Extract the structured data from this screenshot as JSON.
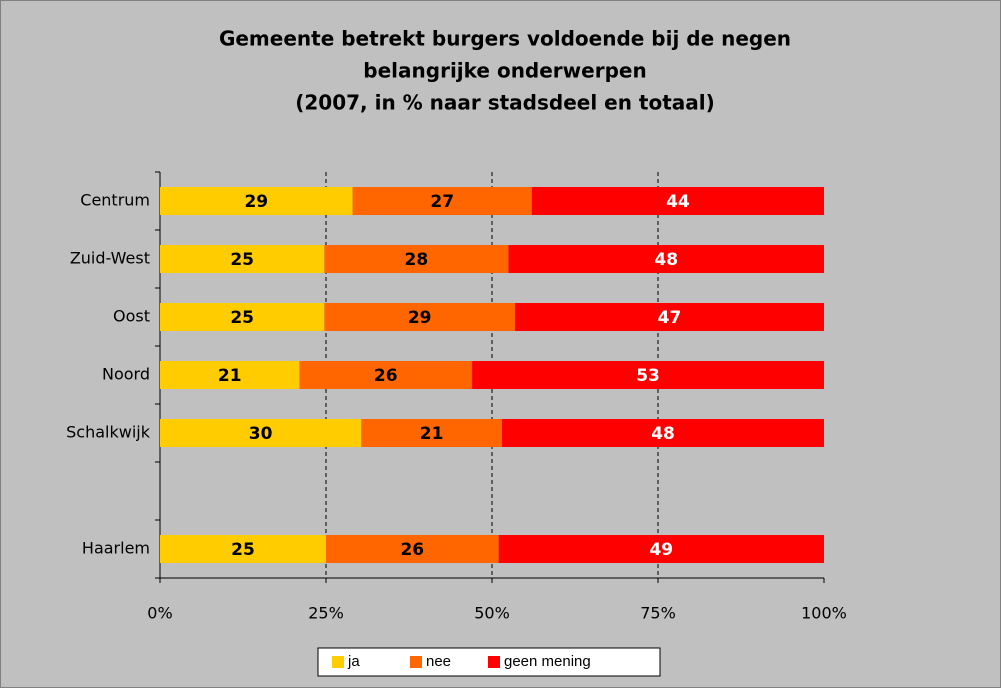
{
  "chart_data": {
    "type": "bar",
    "orientation": "horizontal",
    "stacking": "percent",
    "title": [
      "Gemeente betrekt burgers voldoende bij de negen",
      "belangrijke onderwerpen",
      "(2007, in % naar stadsdeel en totaal)"
    ],
    "categories": [
      "Centrum",
      "Zuid-West",
      "Oost",
      "Noord",
      "Schalkwijk",
      null,
      "Haarlem"
    ],
    "series": [
      {
        "name": "ja",
        "color": "#ffcc00",
        "label_color": "#000000",
        "values": [
          29,
          25,
          25,
          21,
          30,
          null,
          25
        ]
      },
      {
        "name": "nee",
        "color": "#ff6600",
        "label_color": "#000000",
        "values": [
          27,
          28,
          29,
          26,
          21,
          null,
          26
        ]
      },
      {
        "name": "geen mening",
        "color": "#ff0000",
        "label_color": "#ffffff",
        "values": [
          44,
          48,
          47,
          53,
          48,
          null,
          49
        ]
      }
    ],
    "xlim": [
      0,
      100
    ],
    "xticks": [
      {
        "value": 0,
        "label": "0%"
      },
      {
        "value": 25,
        "label": "25%"
      },
      {
        "value": 50,
        "label": "50%"
      },
      {
        "value": 75,
        "label": "75%"
      },
      {
        "value": 100,
        "label": "100%"
      }
    ],
    "grid": true,
    "legend": "bottom"
  }
}
